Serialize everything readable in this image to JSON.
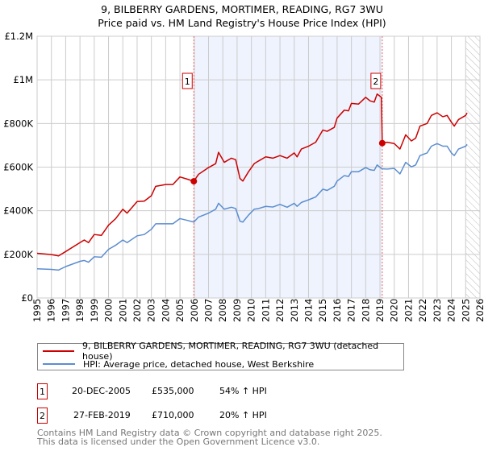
{
  "chart_data": {
    "type": "line",
    "title": "9, BILBERRY GARDENS, MORTIMER, READING, RG7 3WU",
    "subtitle": "Price paid vs. HM Land Registry's House Price Index (HPI)",
    "xlim": [
      1995,
      2026
    ],
    "ylim": [
      0,
      1200000
    ],
    "x_ticks": [
      "1995",
      "1996",
      "1997",
      "1998",
      "1999",
      "2000",
      "2001",
      "2002",
      "2003",
      "2004",
      "2005",
      "2006",
      "2007",
      "2008",
      "2009",
      "2010",
      "2011",
      "2012",
      "2013",
      "2014",
      "2015",
      "2016",
      "2017",
      "2018",
      "2019",
      "2020",
      "2021",
      "2022",
      "2023",
      "2024",
      "2025",
      "2026"
    ],
    "y_ticks": [
      {
        "v": 0,
        "label": "£0"
      },
      {
        "v": 200000,
        "label": "£200K"
      },
      {
        "v": 400000,
        "label": "£400K"
      },
      {
        "v": 600000,
        "label": "£600K"
      },
      {
        "v": 800000,
        "label": "£800K"
      },
      {
        "v": 1000000,
        "label": "£1M"
      },
      {
        "v": 1200000,
        "label": "£1.2M"
      }
    ],
    "grid": true,
    "shaded_range": [
      2005.97,
      2019.16
    ],
    "forecast_hatch_from": 2025,
    "series": [
      {
        "name": "9, BILBERRY GARDENS, MORTIMER, READING, RG7 3WU (detached house)",
        "color": "#cc0000",
        "x": [
          1995,
          1996,
          1996.5,
          1997,
          1998,
          1998.3,
          1998.6,
          1999,
          1999.5,
          2000,
          2000.5,
          2001,
          2001.3,
          2002,
          2002.5,
          2003,
          2003.3,
          2004,
          2004.5,
          2005,
          2005.5,
          2005.97,
          2006.3,
          2007,
          2007.5,
          2007.7,
          2008.1,
          2008.6,
          2008.9,
          2009.2,
          2009.4,
          2009.8,
          2010.2,
          2010.5,
          2011,
          2011.5,
          2012,
          2012.5,
          2013,
          2013.2,
          2013.5,
          2014,
          2014.5,
          2015,
          2015.3,
          2015.8,
          2016,
          2016.5,
          2016.8,
          2017,
          2017.5,
          2018,
          2018.3,
          2018.6,
          2018.8,
          2019.1,
          2019.16,
          2019.5,
          2020,
          2020.4,
          2020.8,
          2021.2,
          2021.5,
          2021.8,
          2022.3,
          2022.6,
          2023,
          2023.4,
          2023.7,
          2024,
          2024.2,
          2024.5,
          2025,
          2025.1
        ],
        "y": [
          205,
          199,
          193,
          213,
          254,
          266,
          254,
          291,
          287,
          334,
          364,
          407,
          389,
          442,
          444,
          469,
          512,
          520,
          520,
          555,
          545,
          535,
          567,
          598,
          616,
          668,
          622,
          641,
          634,
          548,
          536,
          579,
          616,
          628,
          647,
          641,
          653,
          641,
          665,
          647,
          683,
          696,
          714,
          770,
          764,
          782,
          825,
          861,
          858,
          892,
          889,
          920,
          904,
          898,
          935,
          920,
          710,
          714,
          708,
          683,
          748,
          720,
          733,
          788,
          800,
          837,
          849,
          831,
          837,
          806,
          788,
          818,
          837,
          849
        ]
      },
      {
        "name": "HPI: Average price, detached house, West Berkshire",
        "color": "#5b8dd0",
        "x": [
          1995,
          1996,
          1996.5,
          1997,
          1998,
          1998.3,
          1998.6,
          1999,
          1999.5,
          2000,
          2000.5,
          2001,
          2001.3,
          2002,
          2002.5,
          2003,
          2003.3,
          2004,
          2004.5,
          2005,
          2005.5,
          2005.97,
          2006.3,
          2007,
          2007.5,
          2007.7,
          2008.1,
          2008.6,
          2008.9,
          2009.2,
          2009.4,
          2009.8,
          2010.2,
          2010.5,
          2011,
          2011.5,
          2012,
          2012.5,
          2013,
          2013.2,
          2013.5,
          2014,
          2014.5,
          2015,
          2015.3,
          2015.8,
          2016,
          2016.5,
          2016.8,
          2017,
          2017.5,
          2018,
          2018.3,
          2018.6,
          2018.8,
          2019.1,
          2019.16,
          2019.5,
          2020,
          2020.4,
          2020.8,
          2021.2,
          2021.5,
          2021.8,
          2022.3,
          2022.6,
          2023,
          2023.4,
          2023.7,
          2024,
          2024.2,
          2024.5,
          2025,
          2025.1
        ],
        "y": [
          134,
          131,
          128,
          144,
          168,
          172,
          164,
          189,
          187,
          223,
          242,
          266,
          254,
          285,
          291,
          315,
          340,
          340,
          340,
          364,
          356,
          348,
          371,
          389,
          407,
          434,
          407,
          416,
          410,
          352,
          348,
          380,
          407,
          410,
          420,
          417,
          429,
          416,
          434,
          420,
          438,
          450,
          463,
          499,
          493,
          512,
          536,
          561,
          557,
          579,
          579,
          598,
          588,
          585,
          610,
          594,
          592,
          591,
          594,
          569,
          622,
          601,
          610,
          653,
          665,
          696,
          708,
          696,
          696,
          665,
          653,
          683,
          696,
          704
        ]
      }
    ],
    "y_units": "thousands GBP",
    "annotations": [
      {
        "label": "1",
        "x": 2005.97,
        "y": 535
      },
      {
        "label": "2",
        "x": 2019.16,
        "y": 710
      }
    ]
  },
  "legend": {
    "red": "9, BILBERRY GARDENS, MORTIMER, READING, RG7 3WU (detached house)",
    "blue": "HPI: Average price, detached house, West Berkshire"
  },
  "sales": [
    {
      "num": "1",
      "date": "20-DEC-2005",
      "price": "£535,000",
      "hpi": "54% ↑ HPI"
    },
    {
      "num": "2",
      "date": "27-FEB-2019",
      "price": "£710,000",
      "hpi": "20% ↑ HPI"
    }
  ],
  "footer": {
    "line1": "Contains HM Land Registry data © Crown copyright and database right 2025.",
    "line2": "This data is licensed under the Open Government Licence v3.0."
  }
}
